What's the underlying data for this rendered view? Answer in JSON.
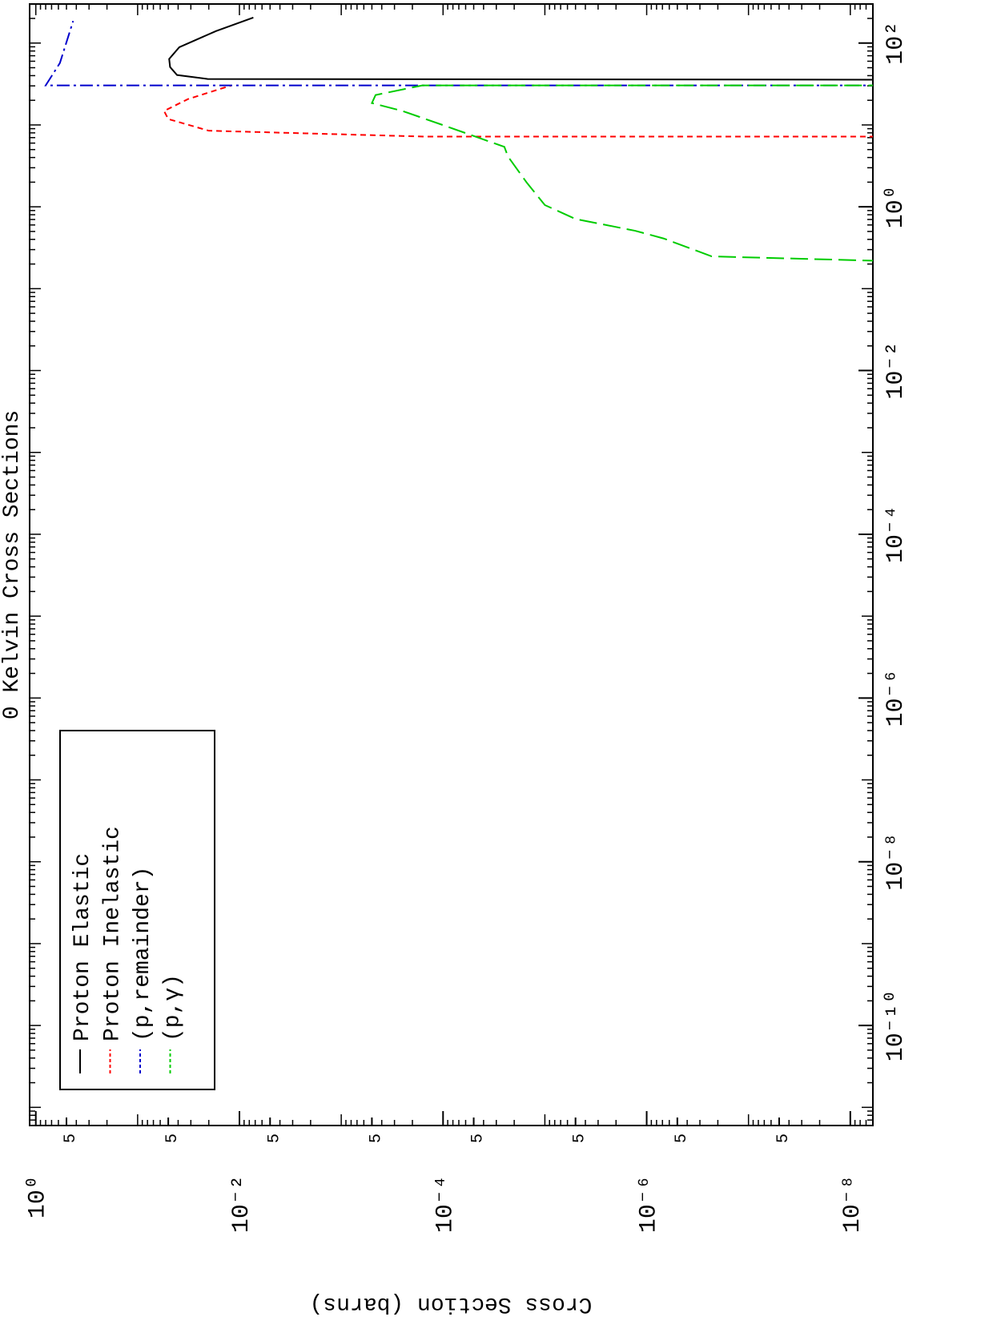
{
  "chart_data": {
    "type": "line",
    "title": "0 Kelvin Cross Sections",
    "y_label": "Cross Section (barns)",
    "log_x": true,
    "log_y": true,
    "minor_ticks": true,
    "legend": "upper left",
    "rotation": -90,
    "xlim": [
      6e-12,
      300
    ],
    "ylim": [
      6e-09,
      1.15
    ],
    "xticks": [
      {
        "value": 1e-10,
        "label": "10⁻¹⁰"
      },
      {
        "value": 1e-08,
        "label": "10⁻⁸"
      },
      {
        "value": 1e-06,
        "label": "10⁻⁶"
      },
      {
        "value": 0.0001,
        "label": "10⁻⁴"
      },
      {
        "value": 0.01,
        "label": "10⁻²"
      },
      {
        "value": 1,
        "label": "10⁰"
      },
      {
        "value": 100,
        "label": "10²"
      }
    ],
    "yticks": [
      {
        "value": 1,
        "label": "10⁰"
      },
      {
        "value": 0.5,
        "label": "5"
      },
      {
        "value": 0.05,
        "label": "5"
      },
      {
        "value": 0.01,
        "label": "10⁻²"
      },
      {
        "value": 0.005,
        "label": "5"
      },
      {
        "value": 0.0005,
        "label": "5"
      },
      {
        "value": 0.0001,
        "label": "10⁻⁴"
      },
      {
        "value": 5e-05,
        "label": "5"
      },
      {
        "value": 5e-06,
        "label": "5"
      },
      {
        "value": 1e-06,
        "label": "10⁻⁶"
      },
      {
        "value": 5e-07,
        "label": "5"
      },
      {
        "value": 5e-08,
        "label": "5"
      },
      {
        "value": 1e-08,
        "label": "10⁻⁸"
      }
    ],
    "series": [
      {
        "name": "Proton Elastic",
        "color": "#000000",
        "dash": "none",
        "x": [
          35.6,
          36.4,
          40.7,
          51,
          64,
          89,
          140,
          205
        ],
        "values": [
          1e-09,
          0.0205,
          0.041,
          0.048,
          0.049,
          0.039,
          0.017,
          0.0073
        ]
      },
      {
        "name": "Proton Inelastic",
        "color": "#ff0000",
        "dash": "7,5",
        "x": [
          7.2,
          7.2,
          8.5,
          11.8,
          14.8,
          20.7,
          30.4
        ],
        "values": [
          1e-09,
          0.00015,
          0.02,
          0.05,
          0.055,
          0.032,
          0.012
        ]
      },
      {
        "name": "(p,remainder)",
        "color": "#0000cc",
        "dash": "16,5,3,5",
        "x": [
          30.4,
          30.4,
          57,
          186
        ],
        "values": [
          1e-09,
          0.8,
          0.58,
          0.43
        ]
      },
      {
        "name": "(p,γ)",
        "color": "#00cc00",
        "dash": "22,8",
        "x": [
          0.207,
          0.248,
          0.41,
          0.51,
          0.71,
          1.05,
          1.96,
          4.1,
          5.4,
          9.5,
          14.8,
          18.5,
          23.2,
          30.4,
          30.4
        ],
        "values": [
          1e-09,
          2.3e-07,
          6.8e-07,
          1.3e-06,
          5e-06,
          1e-05,
          1.5e-05,
          2.3e-05,
          2.5e-05,
          9e-05,
          0.00025,
          0.0005,
          0.00046,
          0.00016,
          1e-09
        ]
      }
    ]
  }
}
